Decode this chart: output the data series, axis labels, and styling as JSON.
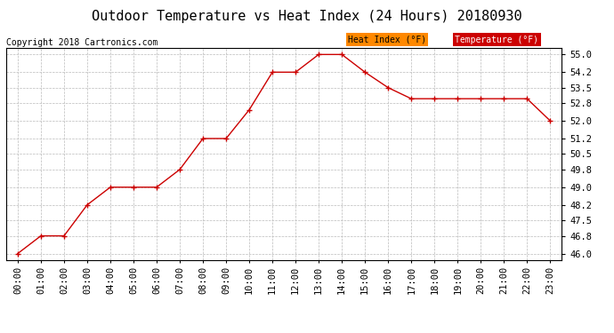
{
  "title": "Outdoor Temperature vs Heat Index (24 Hours) 20180930",
  "copyright": "Copyright 2018 Cartronics.com",
  "hours": [
    "00:00",
    "01:00",
    "02:00",
    "03:00",
    "04:00",
    "05:00",
    "06:00",
    "07:00",
    "08:00",
    "09:00",
    "10:00",
    "11:00",
    "12:00",
    "13:00",
    "14:00",
    "15:00",
    "16:00",
    "17:00",
    "18:00",
    "19:00",
    "20:00",
    "21:00",
    "22:00",
    "23:00"
  ],
  "temperature": [
    46.0,
    46.8,
    46.8,
    48.2,
    49.0,
    49.0,
    49.0,
    49.8,
    51.2,
    51.2,
    52.5,
    54.2,
    54.2,
    55.0,
    55.0,
    54.2,
    53.5,
    53.0,
    53.0,
    53.0,
    53.0,
    53.0,
    53.0,
    52.0
  ],
  "heat_index": [
    46.0,
    46.8,
    46.8,
    48.2,
    49.0,
    49.0,
    49.0,
    49.8,
    51.2,
    51.2,
    52.5,
    54.2,
    54.2,
    55.0,
    55.0,
    54.2,
    53.5,
    53.0,
    53.0,
    53.0,
    53.0,
    53.0,
    53.0,
    52.0
  ],
  "ylim": [
    45.72,
    55.28
  ],
  "yticks": [
    46.0,
    46.8,
    47.5,
    48.2,
    49.0,
    49.8,
    50.5,
    51.2,
    52.0,
    52.8,
    53.5,
    54.2,
    55.0
  ],
  "line_color": "#cc0000",
  "marker": "+",
  "bg_color": "#ffffff",
  "plot_bg": "#ffffff",
  "grid_color": "#bbbbbb",
  "legend_heat_bg": "#ff8800",
  "legend_temp_bg": "#cc0000",
  "legend_heat_text": "Heat Index (°F)",
  "legend_temp_text": "Temperature (°F)",
  "title_fontsize": 11,
  "copyright_fontsize": 7,
  "tick_fontsize": 7.5
}
